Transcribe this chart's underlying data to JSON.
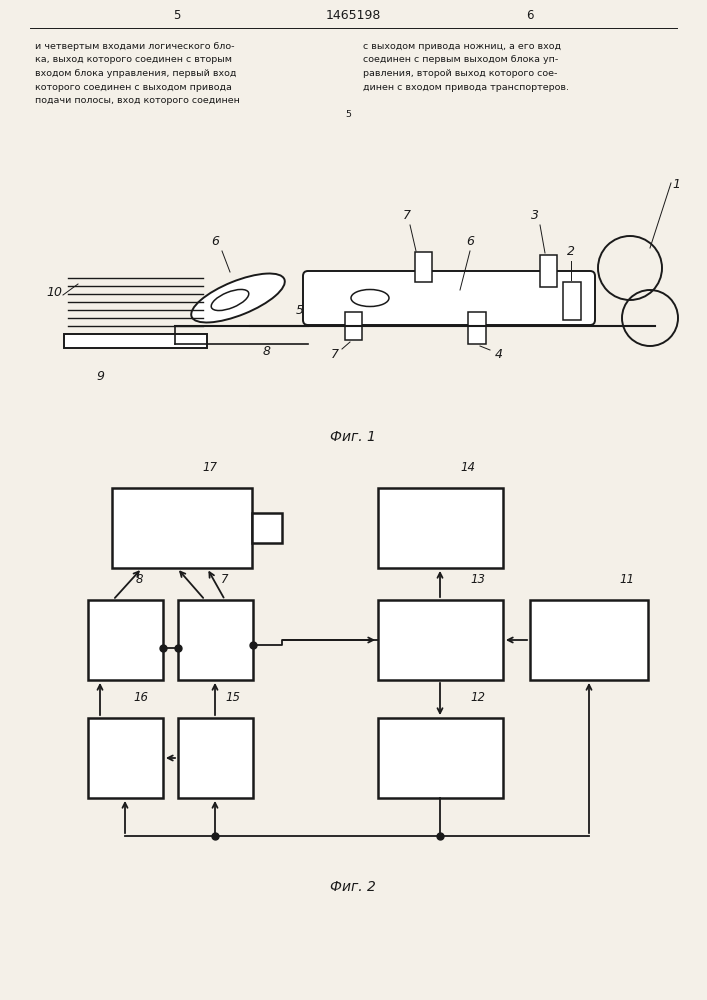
{
  "title": "1465198",
  "page_bg": "#f4f0e8",
  "text_color": "#1a1a1a",
  "col1_text": "и четвертым входами логического бло-\nка, выход которого соединен с вторым\nвходом блока управления, первый вход\nкоторого соединен с выходом привода\nподачи полосы, вход которого соединен",
  "col2_text": "с выходом привода ножниц, а его вход\nсоединен с первым выходом блока уп-\nравления, второй выход которого сое-\nдинен с входом привода транспортеров.",
  "col1_page": "5",
  "col2_page": "6",
  "mid_num": "5",
  "fig1_label": "Фиг. 1",
  "fig2_label": "Фиг. 2",
  "lc": "#1a1a1a"
}
